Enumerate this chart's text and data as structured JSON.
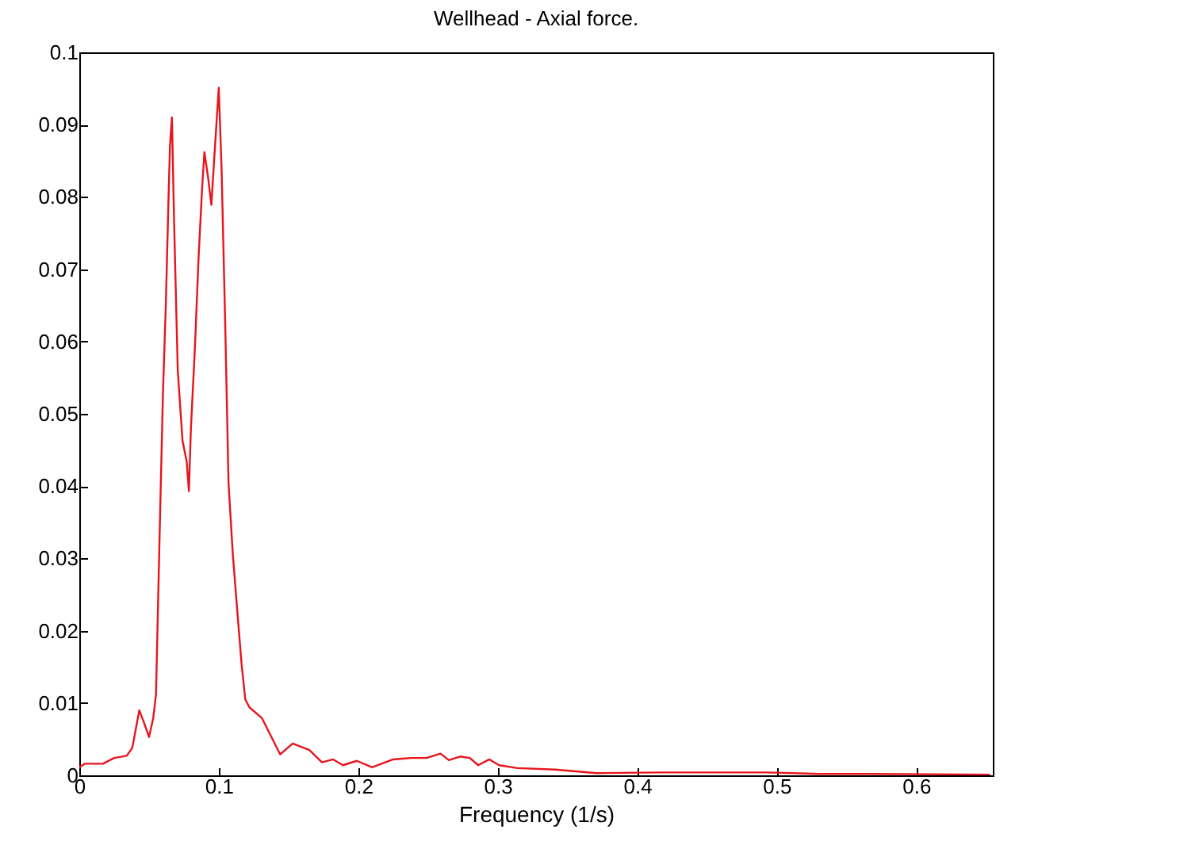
{
  "chart_data": {
    "type": "line",
    "title": "Wellhead - Axial force.",
    "xlabel": "Frequency (1/s)",
    "xlim": [
      0,
      0.655
    ],
    "xticks": [
      0,
      0.1,
      0.2,
      0.3,
      0.4,
      0.5,
      0.6
    ],
    "ylim": [
      0,
      0.1
    ],
    "yticks": [
      0,
      0.01,
      0.02,
      0.03,
      0.04,
      0.05,
      0.06,
      0.07,
      0.08,
      0.09,
      0.1
    ],
    "grid": false,
    "series": [
      {
        "color": "#e8141c",
        "x": [
          0,
          0.0038,
          0.017,
          0.025,
          0.034,
          0.038,
          0.043,
          0.046,
          0.05,
          0.053,
          0.055,
          0.058,
          0.06,
          0.062,
          0.064,
          0.065,
          0.0664,
          0.068,
          0.0706,
          0.074,
          0.077,
          0.0786,
          0.08,
          0.083,
          0.0855,
          0.088,
          0.0897,
          0.0924,
          0.0947,
          0.0973,
          0.1,
          0.102,
          0.1046,
          0.107,
          0.11,
          0.113,
          0.1164,
          0.119,
          0.122,
          0.131,
          0.144,
          0.153,
          0.165,
          0.174,
          0.182,
          0.189,
          0.199,
          0.21,
          0.225,
          0.238,
          0.249,
          0.259,
          0.265,
          0.273,
          0.28,
          0.286,
          0.294,
          0.301,
          0.314,
          0.341,
          0.371,
          0.417,
          0.455,
          0.492,
          0.53,
          0.568,
          0.653
        ],
        "values": [
          0.0011,
          0.0016,
          0.0016,
          0.0024,
          0.0027,
          0.0038,
          0.009,
          0.0075,
          0.0053,
          0.0079,
          0.0112,
          0.0367,
          0.053,
          0.0648,
          0.08,
          0.087,
          0.091,
          0.0763,
          0.056,
          0.0463,
          0.0434,
          0.0393,
          0.0478,
          0.0596,
          0.0715,
          0.081,
          0.0862,
          0.0826,
          0.0789,
          0.087,
          0.0951,
          0.084,
          0.0626,
          0.0404,
          0.0308,
          0.0234,
          0.0153,
          0.0105,
          0.0094,
          0.0079,
          0.0029,
          0.0044,
          0.0035,
          0.0018,
          0.0022,
          0.0014,
          0.002,
          0.0011,
          0.0022,
          0.0024,
          0.0024,
          0.003,
          0.0021,
          0.0026,
          0.0024,
          0.0014,
          0.0022,
          0.0014,
          0.001,
          0.0008,
          0.0003,
          0.0004,
          0.0004,
          0.0004,
          0.0002,
          0.0002,
          0.0001
        ]
      }
    ]
  }
}
